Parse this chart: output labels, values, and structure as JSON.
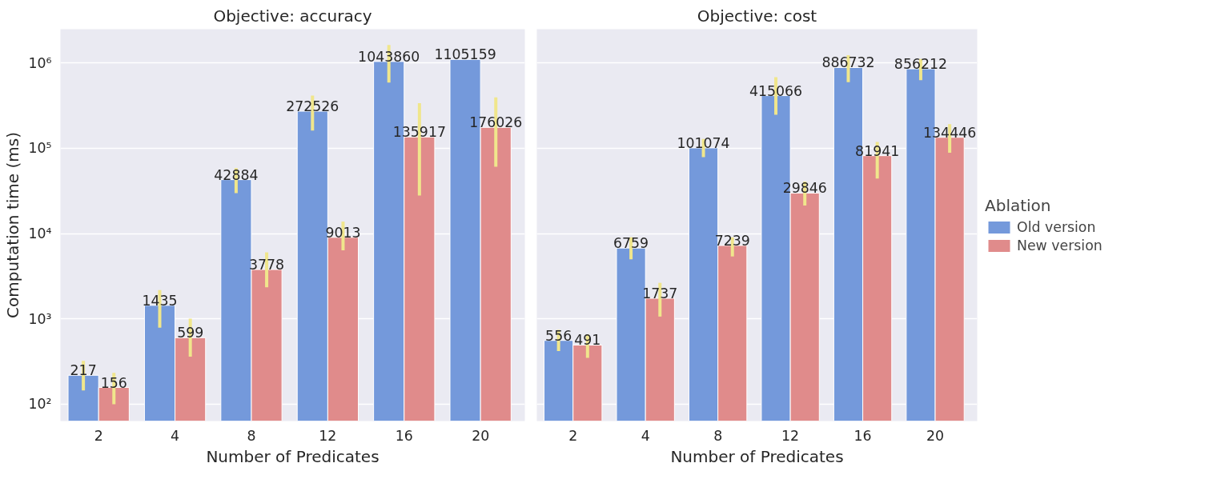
{
  "chart_data": [
    {
      "type": "bar",
      "title": "Objective: accuracy",
      "xlabel": "Number of Predicates",
      "ylabel": "Computation time (ms)",
      "categories": [
        "2",
        "4",
        "8",
        "12",
        "16",
        "20"
      ],
      "log": "y",
      "grid": "y",
      "data_labels": true,
      "ylim": [
        63,
        2500000
      ],
      "yticks": [
        {
          "value": 100,
          "label": "10²"
        },
        {
          "value": 1000,
          "label": "10³"
        },
        {
          "value": 10000,
          "label": "10⁴"
        },
        {
          "value": 100000,
          "label": "10⁵"
        },
        {
          "value": 1000000,
          "label": "10⁶"
        }
      ],
      "series": [
        {
          "color": "#7499db",
          "values": [
            217,
            1435,
            42884,
            272526,
            1043860,
            1105159
          ],
          "errors": [
            [
              144,
              320
            ],
            [
              787,
              2170
            ],
            [
              29800,
              58500
            ],
            [
              162000,
              415000
            ],
            [
              590000,
              1630000
            ],
            null
          ]
        },
        {
          "color": "#e08b8b",
          "values": [
            156,
            599,
            3778,
            9013,
            135917,
            176026
          ],
          "errors": [
            [
              99,
              232
            ],
            [
              358,
              1000
            ],
            [
              2340,
              6010
            ],
            [
              6350,
              13800
            ],
            [
              27900,
              339000
            ],
            [
              60700,
              396000
            ]
          ]
        }
      ]
    },
    {
      "type": "bar",
      "title": "Objective: cost",
      "xlabel": "Number of Predicates",
      "categories": [
        "2",
        "4",
        "8",
        "12",
        "16",
        "20"
      ],
      "log": "y",
      "grid": "y",
      "data_labels": true,
      "tick_labels": "x",
      "legend": "right",
      "legend_title": "Ablation",
      "ylim": [
        63,
        2500000
      ],
      "yticks": [
        {
          "value": 100,
          "label": null
        },
        {
          "value": 1000,
          "label": null
        },
        {
          "value": 10000,
          "label": null
        },
        {
          "value": 100000,
          "label": null
        },
        {
          "value": 1000000,
          "label": null
        }
      ],
      "series": [
        {
          "name": "Old version",
          "color": "#7499db",
          "values": [
            556,
            6759,
            101074,
            415066,
            886732,
            856212
          ],
          "errors": [
            [
              418,
              740
            ],
            [
              4980,
              9020
            ],
            [
              78800,
              129000
            ],
            [
              247000,
              683000
            ],
            [
              597000,
              1240000
            ],
            [
              631000,
              1117000
            ]
          ]
        },
        {
          "name": "New version",
          "color": "#e08b8b",
          "values": [
            491,
            1737,
            7239,
            29846,
            81941,
            134446
          ],
          "errors": [
            [
              348,
              656
            ],
            [
              1060,
              2640
            ],
            [
              5380,
              9020
            ],
            [
              21300,
              40800
            ],
            [
              44100,
              119000
            ],
            [
              88700,
              192000
            ]
          ]
        }
      ]
    }
  ]
}
